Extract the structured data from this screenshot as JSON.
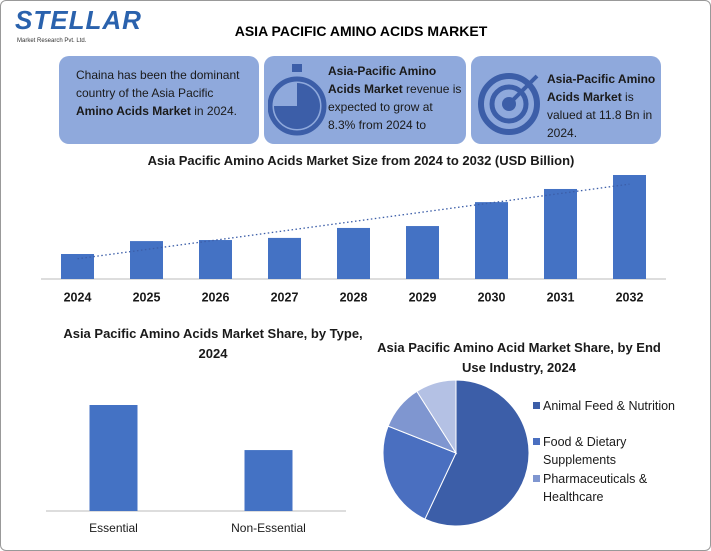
{
  "header": {
    "logo": "STELLAR",
    "logo_sub": "Market Research Pvt. Ltd.",
    "title": "ASIA PACIFIC AMINO ACIDS MARKET"
  },
  "highlights": [
    {
      "parts": [
        {
          "text": "Chaina has been the dominant country of the Asia Pacific ",
          "bold": false
        },
        {
          "text": "Amino Acids Market",
          "bold": true
        },
        {
          "text": " in 2024.",
          "bold": false
        }
      ]
    },
    {
      "parts": [
        {
          "text": "Asia-Pacific Amino Acids Market",
          "bold": true
        },
        {
          "text": " revenue is expected to grow at 8.3% from 2024 to",
          "bold": false
        }
      ]
    },
    {
      "parts": [
        {
          "text": "Asia-Pacific Amino Acids Market",
          "bold": true
        },
        {
          "text": " is valued at 11.8 Bn in 2024.",
          "bold": false
        }
      ]
    }
  ],
  "chart_data": [
    {
      "type": "bar",
      "title": "Asia Pacific Amino Acids Market Size from 2024 to 2032 (USD Billion)",
      "categories": [
        "2024",
        "2025",
        "2026",
        "2027",
        "2028",
        "2029",
        "2030",
        "2031",
        "2032"
      ],
      "values": [
        11.8,
        17.9,
        18.4,
        19.4,
        24.1,
        25.0,
        36.3,
        42.5,
        49.1
      ],
      "color": "#4472c4",
      "trendline": true
    },
    {
      "type": "bar",
      "title": "Asia Pacific Amino Acids Market Share, by Type, 2024",
      "categories": [
        "Essential",
        "Non-Essential"
      ],
      "values": [
        63.5,
        36.5
      ],
      "color": "#4472c4"
    },
    {
      "type": "pie",
      "title": "Asia Pacific Amino Acid Market Share, by End Use Industry, 2024",
      "categories": [
        "Animal Feed & Nutrition",
        "Food & Dietary Supplements",
        "Pharmaceuticals & Healthcare",
        null
      ],
      "values": [
        57,
        24,
        10,
        9
      ],
      "colors": [
        "#3c5ea8",
        "#4a6fc0",
        "#7f96d0",
        "#b4c1e4"
      ]
    }
  ]
}
